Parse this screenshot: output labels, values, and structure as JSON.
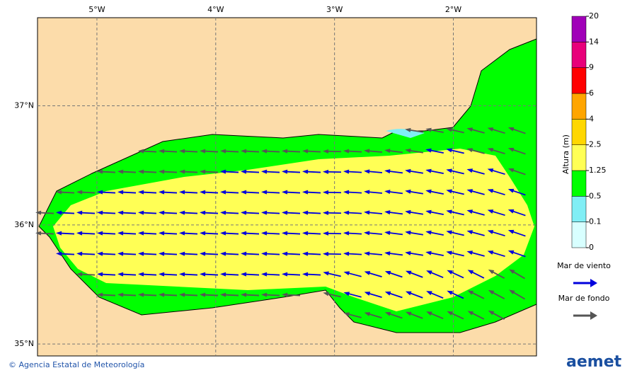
{
  "map": {
    "xlim": [
      -5.5,
      -1.3
    ],
    "ylim": [
      34.9,
      37.74
    ],
    "xticks": [
      {
        "value": -5,
        "label": "5°W"
      },
      {
        "value": -4,
        "label": "4°W"
      },
      {
        "value": -3,
        "label": "3°W"
      },
      {
        "value": -2,
        "label": "2°W"
      }
    ],
    "yticks": [
      {
        "value": 37,
        "label": "37°N"
      },
      {
        "value": 36,
        "label": "36°N"
      },
      {
        "value": 35,
        "label": "35°N"
      }
    ]
  },
  "colorbar": {
    "label": "Altura (m)",
    "levels": [
      0,
      0.1,
      0.5,
      1.25,
      2.5,
      4,
      6,
      9,
      14,
      20
    ],
    "colors": [
      "#d8ffff",
      "#80eef5",
      "#00ff00",
      "#ffff55",
      "#ffd700",
      "#ffa500",
      "#ff0000",
      "#e8007a",
      "#a000b8"
    ]
  },
  "legend": [
    {
      "name": "Mar de viento",
      "color": "#0000dd"
    },
    {
      "name": "Mar de fondo",
      "color": "#555555"
    }
  ],
  "footer": {
    "credit": "© Agencia Estatal de Meteorología",
    "logo": "aemet"
  }
}
